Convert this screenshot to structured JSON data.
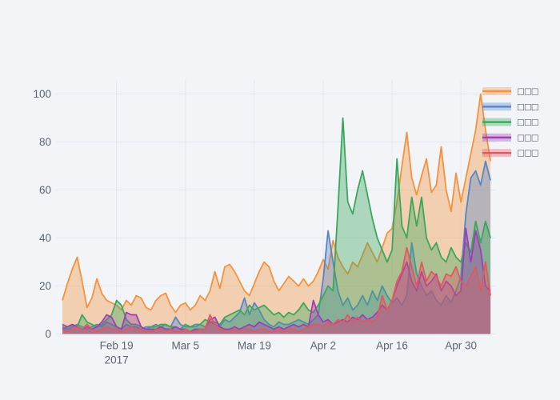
{
  "figure": {
    "background_color": "#f2f4f8",
    "grid_color": "#e4e7f0",
    "tick_label_color": "#5b6573",
    "legend_label_color": "#3c4450"
  },
  "chart_data": {
    "type": "area",
    "title": "",
    "x_label": "",
    "y_label": "",
    "grid": true,
    "legend_position": "right",
    "x_tick_labels": [
      "Feb 19",
      "Mar 5",
      "Mar 19",
      "Apr 2",
      "Apr 16",
      "Apr 30"
    ],
    "x_tick_year": "2017",
    "x_tick_indices": [
      11,
      25,
      39,
      53,
      67,
      81
    ],
    "y_ticks": [
      0,
      20,
      40,
      60,
      80,
      100
    ],
    "y_range": [
      0,
      105
    ],
    "x_dates": [
      "2017-02-08",
      "2017-02-09",
      "2017-02-10",
      "2017-02-11",
      "2017-02-12",
      "2017-02-13",
      "2017-02-14",
      "2017-02-15",
      "2017-02-16",
      "2017-02-17",
      "2017-02-18",
      "2017-02-19",
      "2017-02-20",
      "2017-02-21",
      "2017-02-22",
      "2017-02-23",
      "2017-02-24",
      "2017-02-25",
      "2017-02-26",
      "2017-02-27",
      "2017-02-28",
      "2017-03-01",
      "2017-03-02",
      "2017-03-03",
      "2017-03-04",
      "2017-03-05",
      "2017-03-06",
      "2017-03-07",
      "2017-03-08",
      "2017-03-09",
      "2017-03-10",
      "2017-03-11",
      "2017-03-12",
      "2017-03-13",
      "2017-03-14",
      "2017-03-15",
      "2017-03-16",
      "2017-03-17",
      "2017-03-18",
      "2017-03-19",
      "2017-03-20",
      "2017-03-21",
      "2017-03-22",
      "2017-03-23",
      "2017-03-24",
      "2017-03-25",
      "2017-03-26",
      "2017-03-27",
      "2017-03-28",
      "2017-03-29",
      "2017-03-30",
      "2017-03-31",
      "2017-04-01",
      "2017-04-02",
      "2017-04-03",
      "2017-04-04",
      "2017-04-05",
      "2017-04-06",
      "2017-04-07",
      "2017-04-08",
      "2017-04-09",
      "2017-04-10",
      "2017-04-11",
      "2017-04-12",
      "2017-04-13",
      "2017-04-14",
      "2017-04-15",
      "2017-04-16",
      "2017-04-17",
      "2017-04-18",
      "2017-04-19",
      "2017-04-20",
      "2017-04-21",
      "2017-04-22",
      "2017-04-23",
      "2017-04-24",
      "2017-04-25",
      "2017-04-26",
      "2017-04-27",
      "2017-04-28",
      "2017-04-29",
      "2017-04-30",
      "2017-05-01",
      "2017-05-02",
      "2017-05-03",
      "2017-05-04",
      "2017-05-05",
      "2017-05-06"
    ],
    "series": [
      {
        "id": "series-1-orange",
        "name": "□□□",
        "color": "#f5923e",
        "values": [
          14,
          21,
          27,
          32,
          22,
          11,
          15,
          23,
          17,
          14,
          13,
          12,
          10,
          14,
          12,
          16,
          15,
          11,
          10,
          14,
          16,
          17,
          12,
          9,
          12,
          13,
          10,
          12,
          16,
          14,
          18,
          26,
          19,
          28,
          29,
          26,
          22,
          18,
          16,
          21,
          26,
          30,
          28,
          22,
          18,
          21,
          24,
          22,
          20,
          23,
          20,
          22,
          26,
          31,
          27,
          39,
          32,
          28,
          25,
          30,
          28,
          33,
          38,
          34,
          30,
          36,
          42,
          44,
          55,
          70,
          84,
          65,
          58,
          66,
          73,
          59,
          62,
          78,
          60,
          51,
          67,
          55,
          65,
          75,
          85,
          100,
          85,
          72
        ]
      },
      {
        "id": "series-2-blue",
        "name": "□□□",
        "color": "#5787c3",
        "values": [
          3,
          2,
          3,
          4,
          3,
          2,
          3,
          4,
          3,
          5,
          4,
          3,
          2,
          4,
          3,
          3,
          2,
          3,
          3,
          4,
          3,
          4,
          3,
          7,
          4,
          3,
          3,
          4,
          4,
          3,
          5,
          4,
          3,
          6,
          5,
          7,
          9,
          15,
          8,
          13,
          10,
          6,
          4,
          3,
          5,
          4,
          4,
          5,
          6,
          5,
          4,
          6,
          8,
          23,
          43,
          30,
          18,
          12,
          15,
          10,
          12,
          16,
          12,
          18,
          14,
          20,
          16,
          13,
          15,
          12,
          16,
          38,
          25,
          20,
          16,
          18,
          14,
          12,
          16,
          13,
          18,
          24,
          50,
          65,
          68,
          62,
          72,
          64
        ]
      },
      {
        "id": "series-3-green",
        "name": "□□□",
        "color": "#3aa75c",
        "values": [
          2,
          3,
          4,
          3,
          8,
          5,
          4,
          3,
          4,
          6,
          8,
          14,
          12,
          6,
          4,
          4,
          3,
          2,
          3,
          3,
          4,
          4,
          3,
          3,
          2,
          4,
          3,
          3,
          4,
          6,
          5,
          5,
          4,
          7,
          8,
          9,
          10,
          8,
          12,
          10,
          11,
          12,
          10,
          8,
          9,
          7,
          9,
          8,
          10,
          13,
          10,
          9,
          12,
          16,
          20,
          18,
          52,
          90,
          55,
          50,
          60,
          68,
          58,
          48,
          40,
          35,
          30,
          35,
          73,
          45,
          40,
          57,
          45,
          57,
          40,
          35,
          38,
          32,
          30,
          36,
          32,
          30,
          38,
          34,
          47,
          38,
          47,
          40
        ]
      },
      {
        "id": "series-4-purple",
        "name": "□□□",
        "color": "#9c3fb4",
        "values": [
          4,
          3,
          4,
          3,
          2,
          3,
          2,
          3,
          5,
          8,
          7,
          3,
          2,
          9,
          8,
          8,
          3,
          2,
          2,
          2,
          3,
          2,
          2,
          3,
          2,
          2,
          1,
          2,
          2,
          2,
          6,
          7,
          3,
          2,
          2,
          3,
          2,
          3,
          4,
          3,
          5,
          4,
          3,
          2,
          3,
          2,
          3,
          4,
          3,
          4,
          3,
          14,
          8,
          5,
          6,
          4,
          5,
          6,
          5,
          7,
          6,
          8,
          6,
          7,
          9,
          12,
          10,
          14,
          20,
          25,
          30,
          22,
          18,
          26,
          20,
          22,
          25,
          18,
          22,
          20,
          16,
          18,
          44,
          30,
          43,
          35,
          20,
          18
        ]
      },
      {
        "id": "series-5-red",
        "name": "□□□",
        "color": "#de5a60",
        "values": [
          2,
          1,
          2,
          3,
          2,
          4,
          2,
          1,
          2,
          3,
          2,
          2,
          1,
          2,
          3,
          2,
          2,
          1,
          1,
          2,
          2,
          1,
          2,
          1,
          1,
          2,
          1,
          1,
          2,
          2,
          8,
          4,
          2,
          1,
          1,
          2,
          1,
          2,
          2,
          1,
          2,
          2,
          1,
          1,
          2,
          1,
          2,
          2,
          1,
          2,
          3,
          4,
          4,
          3,
          5,
          4,
          6,
          5,
          8,
          5,
          7,
          5,
          6,
          5,
          7,
          16,
          10,
          14,
          22,
          26,
          36,
          28,
          20,
          30,
          22,
          26,
          24,
          20,
          25,
          24,
          28,
          22,
          20,
          24,
          28,
          18,
          30,
          16
        ]
      }
    ]
  }
}
